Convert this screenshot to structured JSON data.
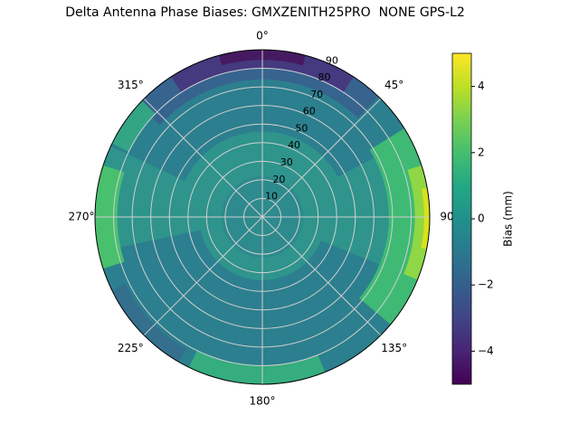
{
  "title": "Delta Antenna Phase Biases: GMXZENITH25PRO  NONE GPS-L2",
  "chart_data": {
    "type": "heatmap",
    "projection": "polar",
    "title": "Delta Antenna Phase Biases: GMXZENITH25PRO  NONE GPS-L2",
    "grid": true,
    "grid_color": "#d0d0d0",
    "base_bias_color": "#2e948c",
    "azimuth_ticks": [
      {
        "angle": 0,
        "label": "0°"
      },
      {
        "angle": 45,
        "label": "45°"
      },
      {
        "angle": 90,
        "label": "90"
      },
      {
        "angle": 135,
        "label": "135°"
      },
      {
        "angle": 180,
        "label": "180°"
      },
      {
        "angle": 225,
        "label": "225°"
      },
      {
        "angle": 270,
        "label": "270°"
      },
      {
        "angle": 315,
        "label": "315°"
      }
    ],
    "radial_axis": {
      "min": 0,
      "max": 90,
      "label_angle": 24
    },
    "radial_ticks": [
      {
        "value": 10,
        "label": "10"
      },
      {
        "value": 20,
        "label": "20"
      },
      {
        "value": 30,
        "label": "30"
      },
      {
        "value": 40,
        "label": "40"
      },
      {
        "value": 50,
        "label": "50"
      },
      {
        "value": 60,
        "label": "60"
      },
      {
        "value": 70,
        "label": "70"
      },
      {
        "value": 80,
        "label": "80"
      },
      {
        "value": 90,
        "label": "90"
      }
    ],
    "colorbar": {
      "label": "Bias (mm)",
      "min": -5,
      "max": 5,
      "colormap": "viridis",
      "ticks": [
        {
          "value": 4,
          "label": "4"
        },
        {
          "value": 2,
          "label": "2"
        },
        {
          "value": 0,
          "label": "0"
        },
        {
          "value": -2,
          "label": "−2"
        },
        {
          "value": -4,
          "label": "−4"
        }
      ],
      "gradient_stops": [
        "#fde725",
        "#bddf26",
        "#7ad151",
        "#44bf70",
        "#22a884",
        "#21918c",
        "#2a788e",
        "#355f8d",
        "#414487",
        "#482475",
        "#440154"
      ]
    },
    "regions": [
      {
        "name": "region-lower-dark-teal",
        "bias_mm": -0.5,
        "color": "#2c7f8e",
        "a1": 112,
        "a2": 258,
        "r1": 34,
        "r2": 90
      },
      {
        "name": "region-upper-dark-teal",
        "bias_mm": -0.5,
        "color": "#2c7f8e",
        "a1": 295,
        "a2": 62,
        "r1": 46,
        "r2": 90
      },
      {
        "name": "region-center-dark-teal",
        "bias_mm": -0.5,
        "color": "#2d8a8d",
        "a1": 0,
        "a2": 360,
        "r1": 0,
        "r2": 22
      },
      {
        "name": "region-upper-blue-band",
        "bias_mm": -2,
        "color": "#36648e",
        "a1": 312,
        "a2": 44,
        "r1": 74,
        "r2": 90
      },
      {
        "name": "region-bottom-left-blue",
        "bias_mm": -1.5,
        "color": "#34708e",
        "a1": 210,
        "a2": 244,
        "r1": 82,
        "r2": 90
      },
      {
        "name": "region-purple-cap",
        "bias_mm": -3.5,
        "color": "#45397f",
        "a1": 327,
        "a2": 33,
        "r1": 80,
        "r2": 90
      },
      {
        "name": "region-purple-core",
        "bias_mm": -4.5,
        "color": "#461a61",
        "a1": 345,
        "a2": 15,
        "r1": 84.5,
        "r2": 90
      },
      {
        "name": "region-right-green-crescent",
        "bias_mm": 1.5,
        "color": "#3eba74",
        "a1": 58,
        "a2": 130,
        "r1": 68,
        "r2": 90
      },
      {
        "name": "region-left-green-patch",
        "bias_mm": 1.5,
        "color": "#49c06e",
        "a1": 252,
        "a2": 288,
        "r1": 78,
        "r2": 90
      },
      {
        "name": "region-upper-left-green",
        "bias_mm": 1,
        "color": "#33a585",
        "a1": 296,
        "a2": 314,
        "r1": 80,
        "r2": 90
      },
      {
        "name": "region-bottom-green-arc",
        "bias_mm": 1,
        "color": "#35ad7e",
        "a1": 158,
        "a2": 206,
        "r1": 80,
        "r2": 90
      },
      {
        "name": "region-right-bright-green",
        "bias_mm": 3,
        "color": "#8fd744",
        "a1": 72,
        "a2": 112,
        "r1": 82,
        "r2": 90
      },
      {
        "name": "region-right-yellow-sliver",
        "bias_mm": 4.5,
        "color": "#d8e219",
        "a1": 80,
        "a2": 101,
        "r1": 87,
        "r2": 90
      }
    ]
  }
}
